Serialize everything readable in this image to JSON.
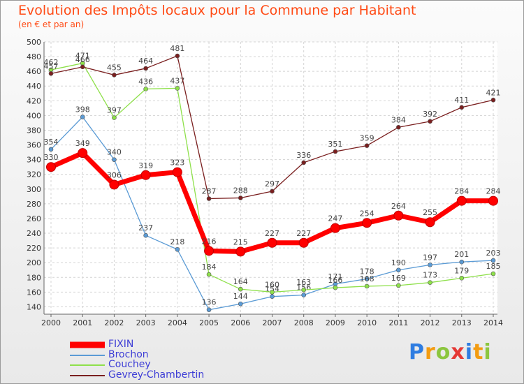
{
  "title": "Evolution des Impôts locaux pour la Commune par Habitant",
  "subtitle": "(en € et par an)",
  "logo": {
    "text": "Proxiti",
    "letters": [
      {
        "ch": "P",
        "color": "#2f7de1"
      },
      {
        "ch": "r",
        "color": "#f39c12"
      },
      {
        "ch": "o",
        "color": "#8cc63f"
      },
      {
        "ch": "x",
        "color": "#e53935"
      },
      {
        "ch": "i",
        "color": "#2f7de1"
      },
      {
        "ch": "t",
        "color": "#f39c12"
      },
      {
        "ch": "i",
        "color": "#8cc63f"
      }
    ]
  },
  "chart_data": {
    "type": "line",
    "title": "Evolution des Impôts locaux pour la Commune par Habitant",
    "subtitle": "(en € et par an)",
    "xlabel": "",
    "ylabel": "",
    "x": [
      "2000",
      "2001",
      "2002",
      "2003",
      "2004",
      "2005",
      "2006",
      "2007",
      "2008",
      "2009",
      "2010",
      "2011",
      "2012",
      "2013",
      "2014"
    ],
    "yticks": [
      140,
      160,
      180,
      200,
      220,
      240,
      260,
      280,
      300,
      320,
      340,
      360,
      380,
      400,
      420,
      440,
      460,
      480,
      500
    ],
    "ylim": [
      130,
      500
    ],
    "grid": true,
    "legend_position": "bottom-left",
    "series": [
      {
        "name": "FIXIN",
        "color": "#ff0000",
        "values": [
          330,
          349,
          306,
          319,
          323,
          216,
          215,
          227,
          227,
          247,
          254,
          264,
          255,
          284,
          284
        ]
      },
      {
        "name": "Brochon",
        "color": "#5b9bd5",
        "values": [
          354,
          398,
          340,
          237,
          218,
          136,
          144,
          154,
          156,
          171,
          178,
          190,
          197,
          201,
          203
        ]
      },
      {
        "name": "Couchey",
        "color": "#8ee04a",
        "values": [
          462,
          471,
          397,
          436,
          437,
          184,
          164,
          160,
          163,
          166,
          168,
          169,
          173,
          179,
          185
        ]
      },
      {
        "name": "Gevrey-Chambertin",
        "color": "#7a1f1f",
        "values": [
          457,
          466,
          455,
          464,
          481,
          287,
          288,
          297,
          336,
          351,
          359,
          384,
          392,
          411,
          421
        ]
      }
    ]
  }
}
